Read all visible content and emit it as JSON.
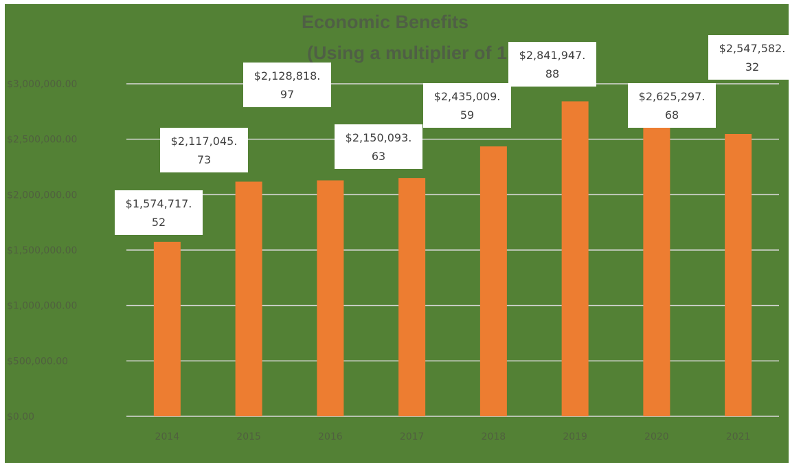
{
  "chart_data": {
    "type": "bar",
    "title": "Economic Benefits",
    "subtitle": "(Using a multiplier of 1.5)",
    "categories": [
      "2014",
      "2015",
      "2016",
      "2017",
      "2018",
      "2019",
      "2020",
      "2021"
    ],
    "values": [
      1574717.52,
      2117045.73,
      2128818.97,
      2150093.63,
      2435009.59,
      2841947.88,
      2625297.68,
      2547582.32
    ],
    "data_labels": [
      [
        "$1,574,717.",
        "52"
      ],
      [
        "$2,117,045.",
        "73"
      ],
      [
        "$2,128,818.",
        "97"
      ],
      [
        "$2,150,093.",
        "63"
      ],
      [
        "$2,435,009.",
        "59"
      ],
      [
        "$2,841,947.",
        "88"
      ],
      [
        "$2,625,297.",
        "68"
      ],
      [
        "$2,547,582.",
        "32"
      ]
    ],
    "y_ticks": [
      0,
      500000,
      1000000,
      1500000,
      2000000,
      2500000,
      3000000
    ],
    "y_tick_labels": [
      "$0.00",
      "$500,000.00",
      "$1,000,000.00",
      "$1,500,000.00",
      "$2,000,000.00",
      "$2,500,000.00",
      "$3,000,000.00"
    ],
    "ylim": [
      0,
      3000000
    ],
    "grid": true,
    "colors": {
      "background": "#538135",
      "bar": "#ed7d31",
      "gridline": "#d9d9d9",
      "label_box": "#ffffff"
    }
  }
}
